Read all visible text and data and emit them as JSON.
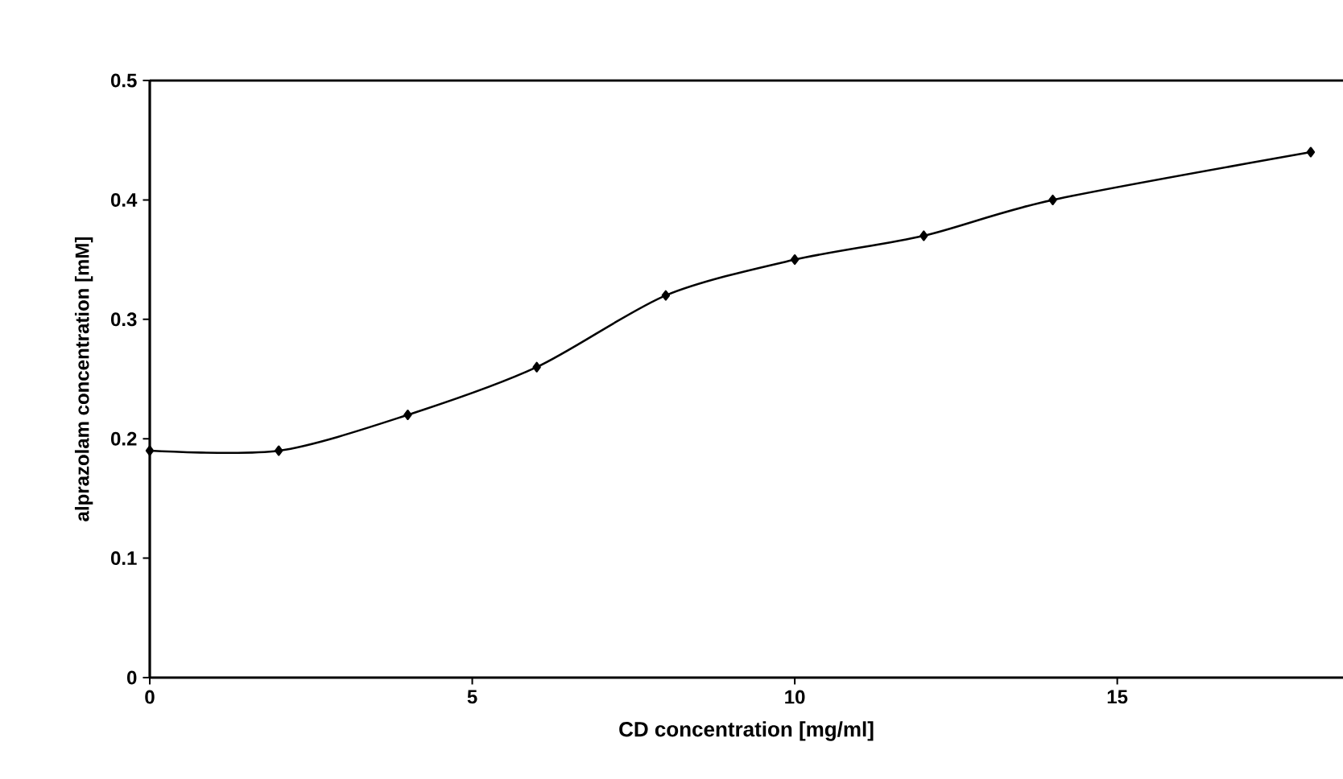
{
  "chart_data": {
    "type": "line",
    "xlabel": "CD concentration [mg/ml]",
    "ylabel": "alprazolam concentration [mM]",
    "x": [
      0,
      2,
      4,
      6,
      8,
      10,
      12,
      14,
      18
    ],
    "series": [
      {
        "color": "#000000",
        "values": [
          0.19,
          0.19,
          0.22,
          0.26,
          0.32,
          0.35,
          0.37,
          0.4,
          0.44
        ]
      }
    ],
    "xlim": [
      0,
      18.5
    ],
    "xticks": [
      0,
      5,
      10,
      15
    ],
    "ylim": [
      0,
      0.5
    ],
    "yticks": [
      0,
      0.1,
      0.2,
      0.3,
      0.4,
      0.5
    ],
    "marker": "diamond",
    "line_style": "solid",
    "grid": false
  }
}
